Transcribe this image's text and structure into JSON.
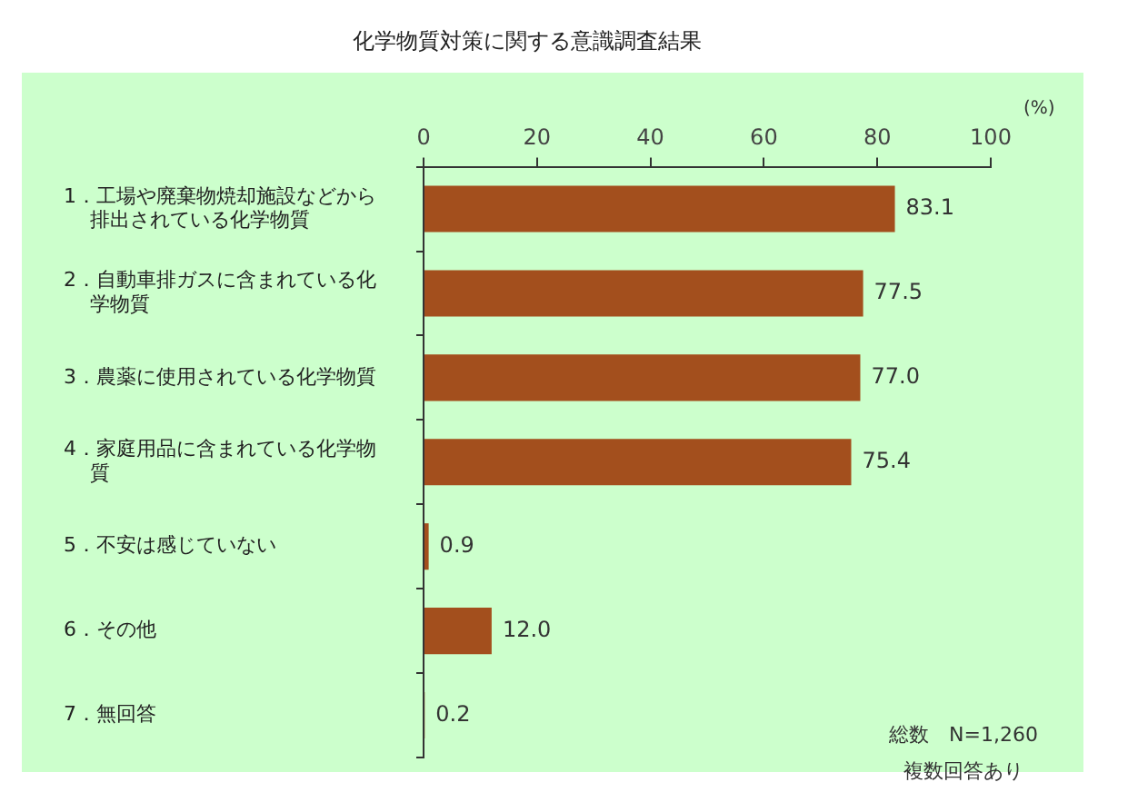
{
  "chart_data": {
    "type": "bar",
    "orientation": "horizontal",
    "title": "化学物質対策に関する意識調査結果",
    "xlabel": "(%)",
    "categories": [
      "1．工場や廃棄物焼却施設などから排出されている化学物質",
      "2．自動車排ガスに含まれている化学物質",
      "3．農薬に使用されている化学物質",
      "4．家庭用品に含まれている化学物質",
      "5．不安は感じていない",
      "6．その他",
      "7．無回答"
    ],
    "values": [
      83.1,
      77.5,
      77.0,
      75.4,
      0.9,
      12.0,
      0.2
    ],
    "value_labels": [
      "83.1",
      "77.5",
      "77.0",
      "75.4",
      "0.9",
      "12.0",
      "0.2"
    ],
    "color": "#a34f1d",
    "xlim": [
      0,
      100
    ],
    "xticks": [
      0,
      20,
      40,
      60,
      80,
      100
    ],
    "grid": false,
    "legend": false,
    "annotations": [
      "総数　N=1,260",
      "複数回答あり"
    ]
  }
}
